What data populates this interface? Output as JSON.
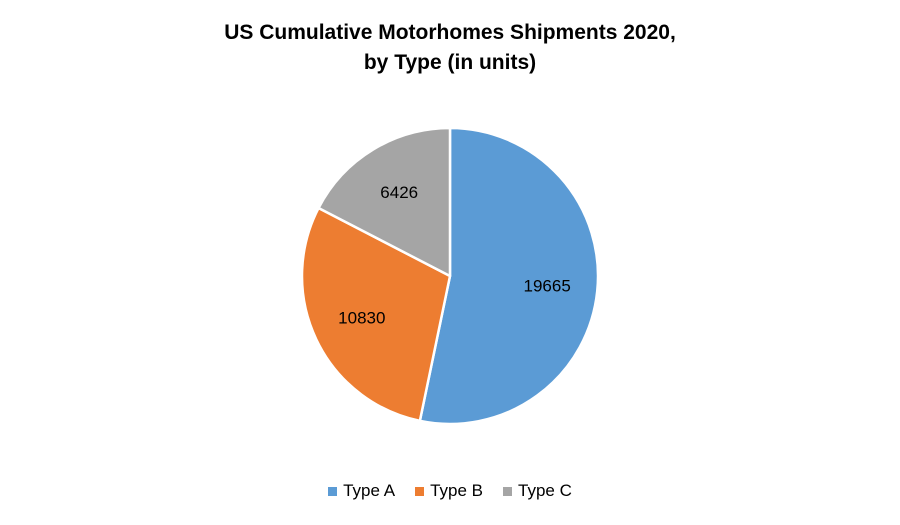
{
  "chart_data": {
    "type": "pie",
    "title_lines": [
      "US Cumulative Motorhomes Shipments 2020,",
      "by Type (in units)"
    ],
    "categories": [
      "Type A",
      "Type B",
      "Type C"
    ],
    "values": [
      19665,
      10830,
      6426
    ],
    "data_labels": [
      "19665",
      "10830",
      "6426"
    ],
    "colors": [
      "#5B9BD5",
      "#ED7D31",
      "#A5A5A5"
    ],
    "start_angle_deg": 0,
    "direction": "clockwise",
    "legend_position": "bottom"
  }
}
